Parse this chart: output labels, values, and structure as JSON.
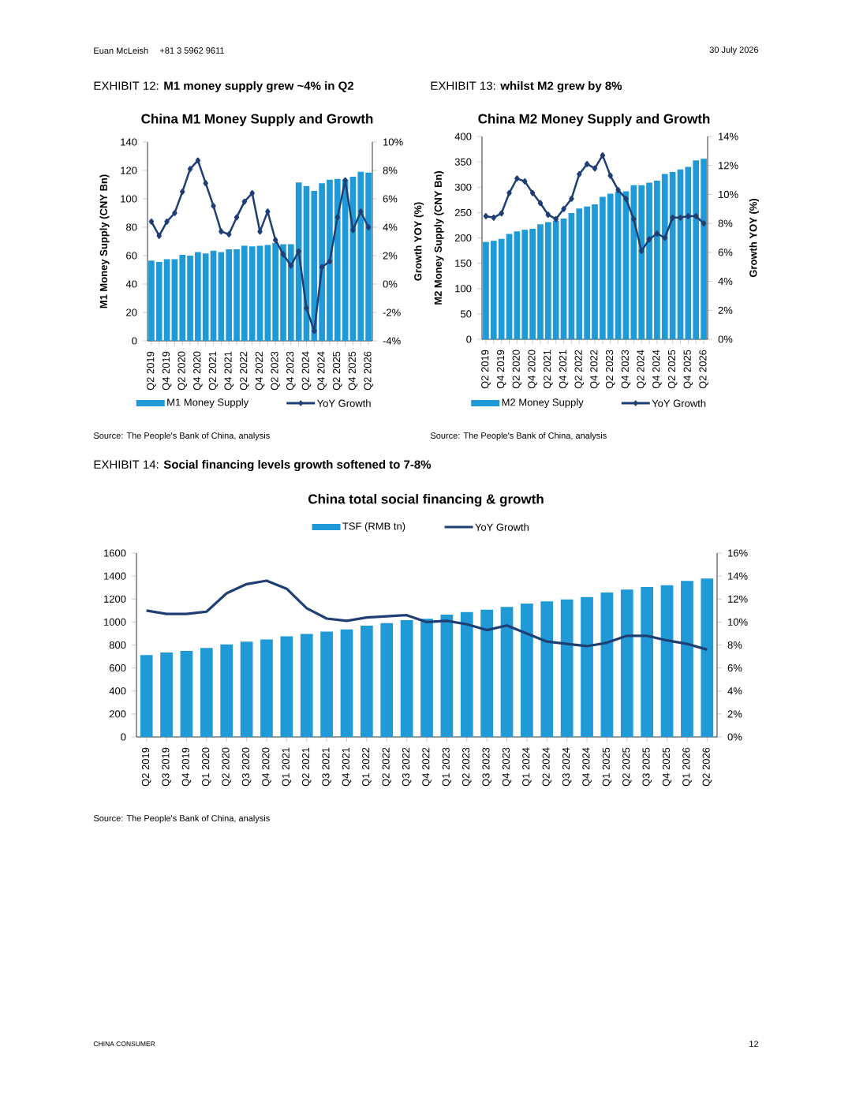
{
  "chart_data": [
    {
      "type": "bar",
      "title": "EXHIBIT 12: **M1 money supply grew ~4% in Q2**",
      "subtitle": "China M1 Money Supply and Growth",
      "ylabel": "M1 Money Supply (CNY Bn)",
      "y2label": "Growth YOY (%)",
      "categories": [
        "Q2 2019",
        null,
        "Q4 2019",
        null,
        "Q2 2020",
        null,
        "Q4 2020",
        null,
        "Q2 2021",
        null,
        "Q4 2021",
        null,
        "Q2 2022",
        null,
        "Q4 2022",
        null,
        "Q2 2023",
        null,
        "Q4 2023",
        null,
        "Q2 2024",
        null,
        "Q4 2024",
        null,
        "Q2 2025",
        null,
        "Q4 2025",
        null,
        "Q2 2026"
      ],
      "series": [
        {
          "name": "M1 Money Supply",
          "color": "#1f9ad6",
          "values": [
            56.5,
            55.5,
            57.5,
            57.5,
            60.5,
            60,
            62.5,
            61.5,
            63.5,
            62.5,
            64.5,
            64.5,
            67,
            66.5,
            67,
            67.5,
            69,
            68,
            68,
            111.5,
            109,
            105.5,
            111,
            113.5,
            114,
            113.5,
            115.5,
            119,
            118.5
          ]
        },
        {
          "name": "YoY Growth",
          "type": "line",
          "axis": "y2",
          "color": "#1f3f74",
          "marker": "diamond",
          "values": [
            4.4,
            3.4,
            4.4,
            5.0,
            6.5,
            8.1,
            8.7,
            7.1,
            5.5,
            3.7,
            3.5,
            4.7,
            5.8,
            6.4,
            3.7,
            5.1,
            3.1,
            2.1,
            1.3,
            2.3,
            -1.7,
            -3.3,
            1.2,
            1.6,
            4.7,
            7.3,
            3.8,
            5.1,
            4.0
          ]
        }
      ],
      "ylim": [
        0,
        140
      ],
      "yticks": [
        0,
        20,
        40,
        60,
        80,
        100,
        120,
        140
      ],
      "y2lim": [
        -4,
        10
      ],
      "y2ticks": [
        {
          "value": -4,
          "label": "-4%"
        },
        {
          "value": -2,
          "label": "-2%"
        },
        {
          "value": 0,
          "label": "0%"
        },
        {
          "value": 2,
          "label": "2%"
        },
        {
          "value": 4,
          "label": "4%"
        },
        {
          "value": 6,
          "label": "6%"
        },
        {
          "value": 8,
          "label": "8%"
        },
        {
          "value": 10,
          "label": "10%"
        }
      ],
      "legend": "bottom",
      "annotations": [
        "Source: The People's Bank of China, analysis",
        "Euan McLeish",
        "+81 3 5962 9611"
      ]
    },
    {
      "type": "bar",
      "title": "EXHIBIT 13: **whilst M2 grew by 8%**",
      "subtitle": "China M2 Money Supply and Growth",
      "ylabel": "M2 Money Supply (CNY Bn)",
      "y2label": "Growth YOY (%)",
      "categories": [
        "Q2 2019",
        null,
        "Q4 2019",
        null,
        "Q2 2020",
        null,
        "Q4 2020",
        null,
        "Q2 2021",
        null,
        "Q4 2021",
        null,
        "Q2 2022",
        null,
        "Q4 2022",
        null,
        "Q2 2023",
        null,
        "Q4 2023",
        null,
        "Q2 2024",
        null,
        "Q4 2024",
        null,
        "Q2 2025",
        null,
        "Q4 2025",
        null,
        "Q2 2026"
      ],
      "series": [
        {
          "name": "M2 Money Supply",
          "color": "#1f9ad6",
          "values": [
            192,
            194,
            198,
            208,
            213,
            216,
            218,
            227,
            231,
            234,
            238,
            249,
            258,
            262,
            266,
            281,
            287,
            291,
            292,
            304,
            304,
            309,
            313,
            326,
            330,
            335,
            340,
            353,
            356
          ]
        },
        {
          "name": "YoY Growth",
          "type": "line",
          "axis": "y2",
          "color": "#1f3f74",
          "marker": "diamond",
          "values": [
            8.5,
            8.4,
            8.7,
            10.1,
            11.1,
            10.9,
            10.1,
            9.4,
            8.6,
            8.3,
            9.0,
            9.7,
            11.4,
            12.1,
            11.8,
            12.7,
            11.3,
            10.3,
            9.7,
            8.3,
            6.1,
            6.9,
            7.3,
            7.0,
            8.4,
            8.4,
            8.5,
            8.5,
            8.0
          ]
        }
      ],
      "ylim": [
        0,
        400
      ],
      "yticks": [
        0,
        50,
        100,
        150,
        200,
        250,
        300,
        350,
        400
      ],
      "y2lim": [
        0,
        14
      ],
      "y2ticks": [
        {
          "value": 0,
          "label": "0%"
        },
        {
          "value": 2,
          "label": "2%"
        },
        {
          "value": 4,
          "label": "4%"
        },
        {
          "value": 6,
          "label": "6%"
        },
        {
          "value": 8,
          "label": "8%"
        },
        {
          "value": 10,
          "label": "10%"
        },
        {
          "value": 12,
          "label": "12%"
        },
        {
          "value": 14,
          "label": "14%"
        }
      ],
      "legend": "bottom",
      "annotations": [
        "Source: The People's Bank of China, analysis",
        "30 July 2026"
      ]
    },
    {
      "type": "bar",
      "title": "EXHIBIT 14: **Social financing levels growth softened to 7-8%**",
      "subtitle": "China total social financing & growth",
      "categories": [
        "Q2 2019",
        "Q3 2019",
        "Q4 2019",
        "Q1 2020",
        "Q2 2020",
        "Q3 2020",
        "Q4 2020",
        "Q1 2021",
        "Q2 2021",
        "Q3 2021",
        "Q4 2021",
        "Q1 2022",
        "Q2 2022",
        "Q3 2022",
        "Q4 2022",
        "Q1 2023",
        "Q2 2023",
        "Q3 2023",
        "Q4 2023",
        "Q1 2024",
        "Q2 2024",
        "Q3 2024",
        "Q4 2024",
        "Q1 2025",
        "Q2 2025",
        "Q3 2025",
        "Q4 2025",
        "Q1 2026",
        "Q2 2026"
      ],
      "series": [
        {
          "name": "TSF (RMB tn)",
          "color": "#1f9ad6",
          "values": [
            713,
            734,
            748,
            775,
            805,
            830,
            849,
            876,
            897,
            917,
            936,
            968,
            991,
            1016,
            1028,
            1064,
            1087,
            1108,
            1131,
            1161,
            1179,
            1197,
            1218,
            1257,
            1282,
            1305,
            1321,
            1358,
            1378
          ]
        },
        {
          "name": "YoY Growth",
          "type": "line",
          "axis": "y2",
          "color": "#1f3f74",
          "values": [
            11.0,
            10.7,
            10.7,
            10.9,
            12.5,
            13.3,
            13.6,
            12.9,
            11.2,
            10.3,
            10.1,
            10.4,
            10.5,
            10.6,
            10.0,
            10.1,
            9.8,
            9.3,
            9.7,
            9.0,
            8.3,
            8.1,
            7.9,
            8.2,
            8.8,
            8.8,
            8.4,
            8.1,
            7.6
          ]
        }
      ],
      "ylim": [
        0,
        1600
      ],
      "yticks": [
        0,
        200,
        400,
        600,
        800,
        1000,
        1200,
        1400,
        1600
      ],
      "y2lim": [
        0,
        16
      ],
      "y2ticks": [
        {
          "value": 0,
          "label": "0%"
        },
        {
          "value": 2,
          "label": "2%"
        },
        {
          "value": 4,
          "label": "4%"
        },
        {
          "value": 6,
          "label": "6%"
        },
        {
          "value": 8,
          "label": "8%"
        },
        {
          "value": 10,
          "label": "10%"
        },
        {
          "value": 12,
          "label": "12%"
        },
        {
          "value": 14,
          "label": "14%"
        },
        {
          "value": 16,
          "label": "16%"
        }
      ],
      "legend": "top",
      "annotations": [
        "Source: The People's Bank of China, analysis",
        "CHINA CONSUMER",
        "12"
      ]
    }
  ]
}
